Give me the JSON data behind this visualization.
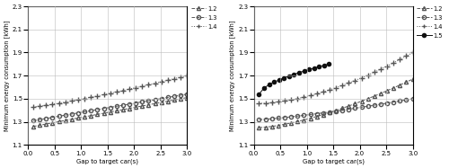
{
  "left": {
    "xlabel": "Gap to target car(s)",
    "ylabel": "Minimum energy consumption [kWh]",
    "ylim": [
      1.1,
      2.3
    ],
    "yticks": [
      1.1,
      1.3,
      1.5,
      1.7,
      1.9,
      2.1,
      2.3
    ],
    "xlim": [
      0,
      3
    ],
    "xticks": [
      0,
      0.5,
      1.0,
      1.5,
      2.0,
      2.5,
      3.0
    ],
    "series": [
      {
        "label": "1.2",
        "marker": "^",
        "linestyle": "--",
        "color": "#555555",
        "filled": false,
        "x_start": 0.1,
        "x_end": 3.0,
        "y_start": 1.26,
        "y_end": 1.51,
        "curve_exp": 1.0
      },
      {
        "label": "1.3",
        "marker": "o",
        "linestyle": "--",
        "color": "#555555",
        "filled": false,
        "x_start": 0.1,
        "x_end": 3.0,
        "y_start": 1.31,
        "y_end": 1.54,
        "curve_exp": 1.0
      },
      {
        "label": "1.4",
        "marker": "+",
        "linestyle": ":",
        "color": "#555555",
        "filled": false,
        "x_start": 0.1,
        "x_end": 3.0,
        "y_start": 1.43,
        "y_end": 1.7,
        "curve_exp": 1.2
      }
    ]
  },
  "right": {
    "xlabel": "Gap to target car(s)",
    "ylabel": "Minimum energy consumption [kWh]",
    "ylim": [
      1.1,
      2.3
    ],
    "yticks": [
      1.1,
      1.3,
      1.5,
      1.7,
      1.9,
      2.1,
      2.3
    ],
    "xlim": [
      0,
      3
    ],
    "xticks": [
      0,
      0.5,
      1.0,
      1.5,
      2.0,
      2.5,
      3.0
    ],
    "series": [
      {
        "label": "1.2",
        "marker": "^",
        "linestyle": "--",
        "color": "#555555",
        "filled": false,
        "x_start": 0.1,
        "x_end": 3.0,
        "y_start": 1.25,
        "y_end": 1.67,
        "curve_exp": 1.5
      },
      {
        "label": "1.3",
        "marker": "o",
        "linestyle": "--",
        "color": "#555555",
        "filled": false,
        "x_start": 0.1,
        "x_end": 3.0,
        "y_start": 1.32,
        "y_end": 1.5,
        "curve_exp": 1.3
      },
      {
        "label": "1.4",
        "marker": "+",
        "linestyle": ":",
        "color": "#555555",
        "filled": false,
        "x_start": 0.1,
        "x_end": 3.0,
        "y_start": 1.46,
        "y_end": 1.9,
        "curve_exp": 1.7
      },
      {
        "label": "1.5",
        "marker": "o",
        "linestyle": "-",
        "color": "#111111",
        "filled": true,
        "x_start": 0.1,
        "x_end": 1.42,
        "y_start": 1.54,
        "y_end": 1.8,
        "curve_exp": 0.6
      }
    ]
  }
}
